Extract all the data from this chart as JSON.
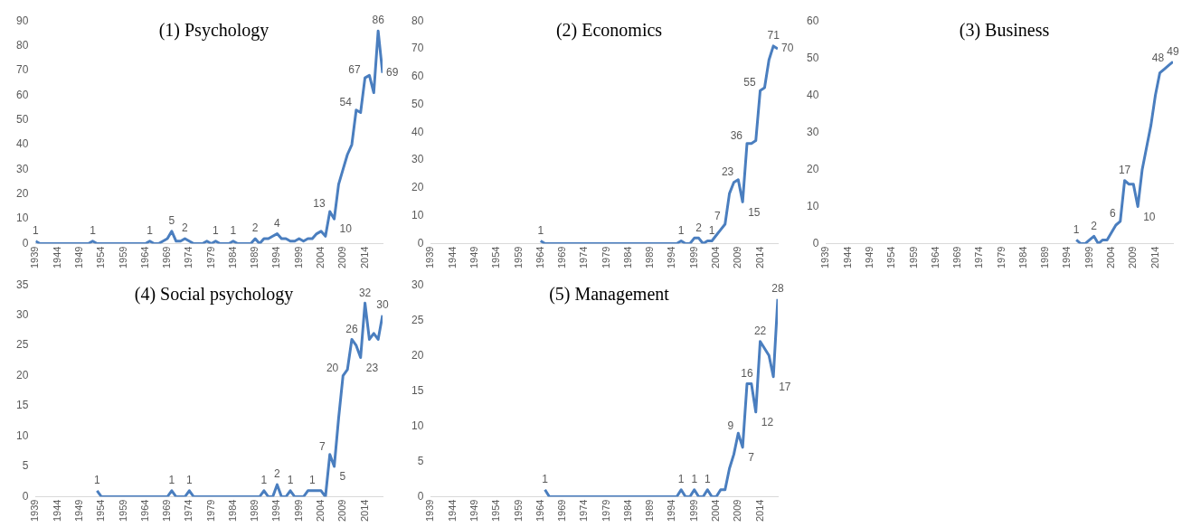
{
  "chart_data": [
    {
      "type": "line",
      "title": "(1) Psychology",
      "color": "#4a7ebf",
      "xlim": [
        1939,
        2018
      ],
      "xticks": [
        1939,
        1944,
        1949,
        1954,
        1959,
        1964,
        1969,
        1974,
        1979,
        1984,
        1989,
        1994,
        1999,
        2004,
        2009,
        2014
      ],
      "ylim": [
        0,
        90
      ],
      "yticks": [
        0,
        10,
        20,
        30,
        40,
        50,
        60,
        70,
        80,
        90
      ],
      "x": [
        1939,
        1940,
        1941,
        1942,
        1943,
        1944,
        1945,
        1946,
        1947,
        1948,
        1949,
        1950,
        1951,
        1952,
        1953,
        1954,
        1955,
        1956,
        1957,
        1958,
        1959,
        1960,
        1961,
        1962,
        1963,
        1964,
        1965,
        1966,
        1967,
        1968,
        1969,
        1970,
        1971,
        1972,
        1973,
        1974,
        1975,
        1976,
        1977,
        1978,
        1979,
        1980,
        1981,
        1982,
        1983,
        1984,
        1985,
        1986,
        1987,
        1988,
        1989,
        1990,
        1991,
        1992,
        1993,
        1994,
        1995,
        1996,
        1997,
        1998,
        1999,
        2000,
        2001,
        2002,
        2003,
        2004,
        2005,
        2006,
        2007,
        2008,
        2009,
        2010,
        2011,
        2012,
        2013,
        2014,
        2015,
        2016,
        2017,
        2018
      ],
      "values": [
        1,
        0,
        0,
        0,
        0,
        0,
        0,
        0,
        0,
        0,
        0,
        0,
        0,
        1,
        0,
        0,
        0,
        0,
        0,
        0,
        0,
        0,
        0,
        0,
        0,
        0,
        1,
        0,
        0,
        1,
        2,
        5,
        1,
        1,
        2,
        1,
        0,
        0,
        0,
        1,
        0,
        1,
        0,
        0,
        0,
        1,
        0,
        0,
        0,
        0,
        2,
        0,
        2,
        2,
        3,
        4,
        2,
        2,
        1,
        1,
        2,
        1,
        2,
        2,
        4,
        5,
        3,
        13,
        10,
        24,
        30,
        36,
        40,
        54,
        53,
        67,
        68,
        61,
        86,
        69
      ],
      "value_labels": [
        "1",
        null,
        null,
        null,
        null,
        null,
        null,
        null,
        null,
        null,
        null,
        null,
        null,
        "1",
        null,
        null,
        null,
        null,
        null,
        null,
        null,
        null,
        null,
        null,
        null,
        null,
        "1",
        null,
        null,
        null,
        null,
        "5",
        null,
        null,
        "2",
        null,
        null,
        null,
        null,
        null,
        null,
        "1",
        null,
        null,
        null,
        "1",
        null,
        null,
        null,
        null,
        "2",
        null,
        null,
        null,
        null,
        "4",
        null,
        null,
        null,
        null,
        null,
        null,
        null,
        null,
        null,
        null,
        null,
        "13",
        "10",
        null,
        null,
        null,
        null,
        "54",
        null,
        "67",
        null,
        null,
        "86",
        "69"
      ]
    },
    {
      "type": "line",
      "title": "(2) Economics",
      "color": "#4a7ebf",
      "xlim": [
        1939,
        2018
      ],
      "xticks": [
        1939,
        1944,
        1949,
        1954,
        1959,
        1964,
        1969,
        1974,
        1979,
        1984,
        1989,
        1994,
        1999,
        2004,
        2009,
        2014
      ],
      "ylim": [
        0,
        80
      ],
      "yticks": [
        0,
        10,
        20,
        30,
        40,
        50,
        60,
        70,
        80
      ],
      "x": [
        1964,
        1965,
        1966,
        1967,
        1968,
        1969,
        1970,
        1971,
        1972,
        1973,
        1974,
        1975,
        1976,
        1977,
        1978,
        1979,
        1980,
        1981,
        1982,
        1983,
        1984,
        1985,
        1986,
        1987,
        1988,
        1989,
        1990,
        1991,
        1992,
        1993,
        1994,
        1995,
        1996,
        1997,
        1998,
        1999,
        2000,
        2001,
        2002,
        2003,
        2004,
        2005,
        2006,
        2007,
        2008,
        2009,
        2010,
        2011,
        2012,
        2013,
        2014,
        2015,
        2016,
        2017,
        2018
      ],
      "values": [
        1,
        0,
        0,
        0,
        0,
        0,
        0,
        0,
        0,
        0,
        0,
        0,
        0,
        0,
        0,
        0,
        0,
        0,
        0,
        0,
        0,
        0,
        0,
        0,
        0,
        0,
        0,
        0,
        0,
        0,
        0,
        0,
        1,
        0,
        0,
        2,
        2,
        0,
        1,
        1,
        3,
        5,
        7,
        18,
        22,
        23,
        15,
        36,
        36,
        37,
        55,
        56,
        66,
        71,
        70
      ],
      "value_labels": [
        "1",
        null,
        null,
        null,
        null,
        null,
        null,
        null,
        null,
        null,
        null,
        null,
        null,
        null,
        null,
        null,
        null,
        null,
        null,
        null,
        null,
        null,
        null,
        null,
        null,
        null,
        null,
        null,
        null,
        null,
        null,
        null,
        "1",
        null,
        null,
        null,
        "2",
        null,
        null,
        "1",
        null,
        null,
        "7",
        null,
        null,
        "23",
        "15",
        "36",
        null,
        null,
        "55",
        null,
        null,
        "71",
        "70"
      ]
    },
    {
      "type": "line",
      "title": "(3) Business",
      "color": "#4a7ebf",
      "xlim": [
        1939,
        2018
      ],
      "xticks": [
        1939,
        1944,
        1949,
        1954,
        1959,
        1964,
        1969,
        1974,
        1979,
        1984,
        1989,
        1994,
        1999,
        2004,
        2009,
        2014
      ],
      "ylim": [
        0,
        60
      ],
      "yticks": [
        0,
        10,
        20,
        30,
        40,
        50,
        60
      ],
      "x": [
        1996,
        1997,
        1998,
        1999,
        2000,
        2001,
        2002,
        2003,
        2004,
        2005,
        2006,
        2007,
        2008,
        2009,
        2010,
        2011,
        2012,
        2013,
        2014,
        2015,
        2016,
        2017,
        2018
      ],
      "values": [
        1,
        0,
        0,
        1,
        2,
        0,
        1,
        1,
        3,
        5,
        6,
        17,
        16,
        16,
        10,
        20,
        26,
        32,
        40,
        46,
        47,
        48,
        49
      ],
      "value_labels": [
        "1",
        null,
        null,
        null,
        "2",
        null,
        null,
        null,
        null,
        null,
        "6",
        "17",
        null,
        null,
        "10",
        null,
        null,
        null,
        null,
        null,
        null,
        "48",
        "49"
      ]
    },
    {
      "type": "line",
      "title": "(4) Social psychology",
      "color": "#4a7ebf",
      "xlim": [
        1939,
        2018
      ],
      "xticks": [
        1939,
        1944,
        1949,
        1954,
        1959,
        1964,
        1969,
        1974,
        1979,
        1984,
        1989,
        1994,
        1999,
        2004,
        2009,
        2014
      ],
      "ylim": [
        0,
        35
      ],
      "yticks": [
        0,
        5,
        10,
        15,
        20,
        25,
        30,
        35
      ],
      "x": [
        1953,
        1954,
        1955,
        1956,
        1957,
        1958,
        1959,
        1960,
        1961,
        1962,
        1963,
        1964,
        1965,
        1966,
        1967,
        1968,
        1969,
        1970,
        1971,
        1972,
        1973,
        1974,
        1975,
        1976,
        1977,
        1978,
        1979,
        1980,
        1981,
        1982,
        1983,
        1984,
        1985,
        1986,
        1987,
        1988,
        1989,
        1990,
        1991,
        1992,
        1993,
        1994,
        1995,
        1996,
        1997,
        1998,
        1999,
        2000,
        2001,
        2002,
        2003,
        2004,
        2005,
        2006,
        2007,
        2008,
        2009,
        2010,
        2011,
        2012,
        2013,
        2014,
        2015,
        2016,
        2017,
        2018
      ],
      "values": [
        1,
        0,
        0,
        0,
        0,
        0,
        0,
        0,
        0,
        0,
        0,
        0,
        0,
        0,
        0,
        0,
        0,
        1,
        0,
        0,
        0,
        1,
        0,
        0,
        0,
        0,
        0,
        0,
        0,
        0,
        0,
        0,
        0,
        0,
        0,
        0,
        0,
        0,
        1,
        0,
        0,
        2,
        0,
        0,
        1,
        0,
        0,
        0,
        1,
        1,
        1,
        1,
        0,
        7,
        5,
        13,
        20,
        21,
        26,
        25,
        23,
        32,
        26,
        27,
        26,
        30
      ],
      "value_labels": [
        "1",
        null,
        null,
        null,
        null,
        null,
        null,
        null,
        null,
        null,
        null,
        null,
        null,
        null,
        null,
        null,
        null,
        "1",
        null,
        null,
        null,
        "1",
        null,
        null,
        null,
        null,
        null,
        null,
        null,
        null,
        null,
        null,
        null,
        null,
        null,
        null,
        null,
        null,
        "1",
        null,
        null,
        "2",
        null,
        null,
        "1",
        null,
        null,
        null,
        null,
        "1",
        null,
        null,
        null,
        "7",
        "5",
        null,
        "20",
        null,
        "26",
        null,
        "23",
        "32",
        null,
        null,
        null,
        "30"
      ]
    },
    {
      "type": "line",
      "title": "(5) Management",
      "color": "#4a7ebf",
      "xlim": [
        1939,
        2018
      ],
      "xticks": [
        1939,
        1944,
        1949,
        1954,
        1959,
        1964,
        1969,
        1974,
        1979,
        1984,
        1989,
        1994,
        1999,
        2004,
        2009,
        2014
      ],
      "ylim": [
        0,
        30
      ],
      "yticks": [
        0,
        5,
        10,
        15,
        20,
        25,
        30
      ],
      "x": [
        1965,
        1966,
        1967,
        1968,
        1969,
        1970,
        1971,
        1972,
        1973,
        1974,
        1975,
        1976,
        1977,
        1978,
        1979,
        1980,
        1981,
        1982,
        1983,
        1984,
        1985,
        1986,
        1987,
        1988,
        1989,
        1990,
        1991,
        1992,
        1993,
        1994,
        1995,
        1996,
        1997,
        1998,
        1999,
        2000,
        2001,
        2002,
        2003,
        2004,
        2005,
        2006,
        2007,
        2008,
        2009,
        2010,
        2011,
        2012,
        2013,
        2014,
        2015,
        2016,
        2017,
        2018
      ],
      "values": [
        1,
        0,
        0,
        0,
        0,
        0,
        0,
        0,
        0,
        0,
        0,
        0,
        0,
        0,
        0,
        0,
        0,
        0,
        0,
        0,
        0,
        0,
        0,
        0,
        0,
        0,
        0,
        0,
        0,
        0,
        0,
        1,
        0,
        0,
        1,
        0,
        0,
        1,
        0,
        0,
        1,
        1,
        4,
        6,
        9,
        7,
        16,
        16,
        12,
        22,
        21,
        20,
        17,
        28
      ],
      "value_labels": [
        "1",
        null,
        null,
        null,
        null,
        null,
        null,
        null,
        null,
        null,
        null,
        null,
        null,
        null,
        null,
        null,
        null,
        null,
        null,
        null,
        null,
        null,
        null,
        null,
        null,
        null,
        null,
        null,
        null,
        null,
        null,
        "1",
        null,
        null,
        "1",
        null,
        null,
        "1",
        null,
        null,
        null,
        null,
        null,
        null,
        "9",
        "7",
        "16",
        null,
        "12",
        "22",
        null,
        null,
        "17",
        "28"
      ]
    }
  ]
}
